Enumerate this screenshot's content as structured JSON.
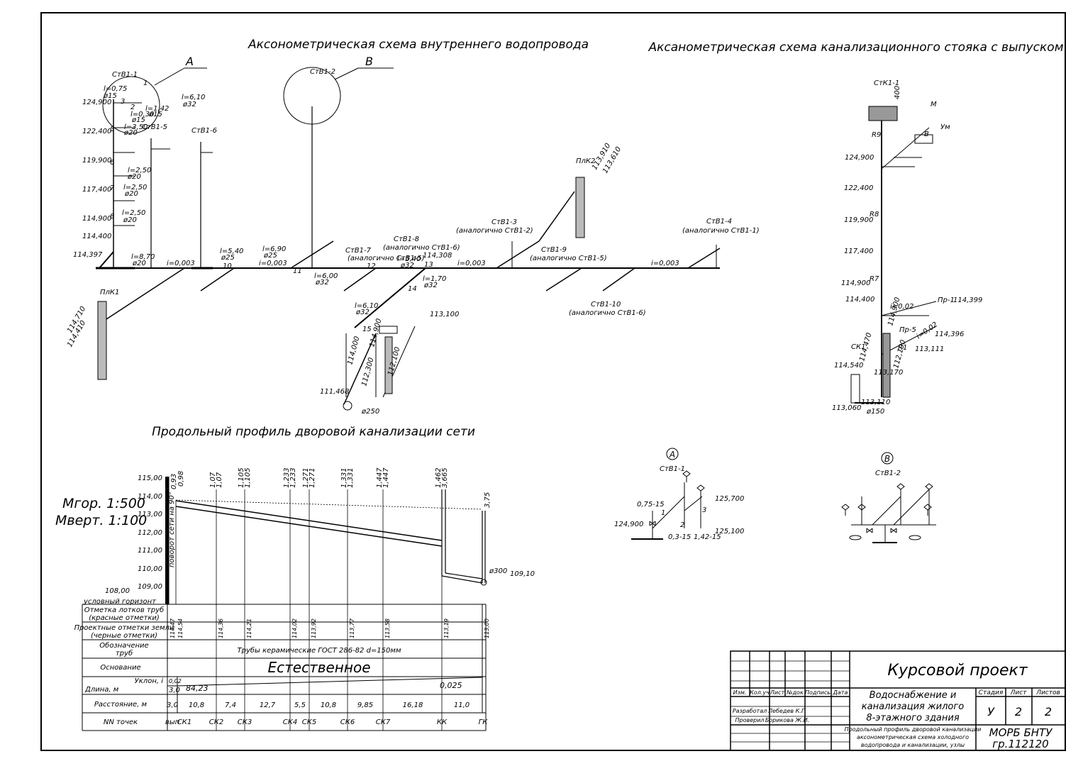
{
  "titles": {
    "water_axon": "Аксонометрическая схема внутреннего водопровода",
    "sewer_axon": "Аксанометрическая схема канализационного стояка с выпуском",
    "profile": "Продольный профиль дворовой канализации сети"
  },
  "water": {
    "nodes": {
      "A": "А",
      "B": "В"
    },
    "risers": [
      "СтВ1-1",
      "СтВ1-2",
      "СтВ1-5",
      "СтВ1-6",
      "СтВ1-7",
      "СтВ1-8",
      "СтВ1-3",
      "СтВ1-9",
      "СтВ1-4",
      "СтВ1-10"
    ],
    "riser_notes": {
      "stv1_7": "(аналогично СтВ1-5)",
      "stv1_8": "(аналогично СтВ1-6)",
      "stv1_3": "(аналогично СтВ1-2)",
      "stv1_9": "(аналогично СтВ1-5)",
      "stv1_4": "(аналогично СтВ1-1)",
      "stv1_10": "(аналогично СтВ1-6)"
    },
    "levels": [
      "124,900",
      "122,400",
      "119,900",
      "117,400",
      "114,900",
      "114,400",
      "114,397"
    ],
    "pipes": [
      {
        "l": "l=0,75",
        "d": "ø15"
      },
      {
        "l": "l=1,42",
        "d": "ø15"
      },
      {
        "l": "l=0,30",
        "d": "ø15"
      },
      {
        "l": "l=3,50",
        "d": "ø20"
      },
      {
        "l": "l=2,50",
        "d": "ø20"
      },
      {
        "l": "l=2,50",
        "d": "ø20"
      },
      {
        "l": "l=2,50",
        "d": "ø20"
      },
      {
        "l": "l=6,10",
        "d": "ø32"
      },
      {
        "l": "l=8,70",
        "d": "ø20"
      },
      {
        "l": "l=5,40",
        "d": "ø25"
      },
      {
        "l": "l=6,90",
        "d": "ø25"
      },
      {
        "l": "l=6,00",
        "d": "ø32"
      },
      {
        "l": "l=5,40",
        "d": "ø32"
      },
      {
        "l": "l=1,70",
        "d": "ø32"
      },
      {
        "l": "l=6,10",
        "d": "ø32"
      }
    ],
    "slope": "i=0,003",
    "ground": {
      "plk1": "ПлК1",
      "plk2": "ПлК2",
      "a": "114,710",
      "b": "114,410",
      "c": "113,910",
      "d": "113,610"
    },
    "inlet": {
      "l1": "114,308",
      "l2": "113,100",
      "l3": "114,000",
      "l4": "114,900",
      "l5": "112,300",
      "l6": "112,100",
      "l7": "111,468",
      "d": "ø250"
    },
    "node_nums": [
      "1",
      "2",
      "3",
      "4",
      "5",
      "6",
      "7",
      "8",
      "9",
      "10",
      "11",
      "12",
      "13",
      "14",
      "15"
    ]
  },
  "sewer": {
    "riser": "СтК1-1",
    "top": "400",
    "levels": [
      "124,900",
      "122,400",
      "119,900",
      "117,400",
      "114,900",
      "114,400"
    ],
    "revisions": [
      "R9",
      "R8",
      "R7",
      "R1"
    ],
    "fixtures": [
      "М",
      "В",
      "Ум"
    ],
    "slopes": [
      "i=0,02",
      "i=0,02"
    ],
    "marks": [
      "Пр-1",
      "114,399",
      "114,396",
      "113,111",
      "Пр-5",
      "114,900",
      "114,470",
      "113,170",
      "112,100",
      "СК1",
      "114,540",
      "113,110",
      "113,060",
      "ø150"
    ]
  },
  "details": {
    "a": {
      "label": "А",
      "riser": "СтВ1-1",
      "v": [
        "0,75-15",
        "125,700",
        "125,100",
        "124,900",
        "0,3-15",
        "1,42-15"
      ],
      "n": [
        "1",
        "2",
        "3"
      ]
    },
    "b": {
      "label": "В",
      "riser": "СтВ1-2"
    }
  },
  "profile": {
    "scale_h": "Мгор. 1:500",
    "scale_v": "Мверт. 1:100",
    "yticks": [
      "115,00",
      "114,00",
      "113,00",
      "112,00",
      "111,00",
      "110,00",
      "109,00"
    ],
    "horizon_value": "108,00",
    "horizon_label": "условный горизонт",
    "turn_note": "поворот сети на 90°",
    "depths": [
      "0,93",
      "0,98",
      "1,07",
      "1,07",
      "1,105",
      "1,105",
      "1,233",
      "1,233",
      "1,271",
      "1,271",
      "1,331",
      "1,331",
      "1,447",
      "1,447",
      "1,462",
      "3,665",
      "3,75"
    ],
    "manhole_d": "ø300",
    "manhole_level": "109,10",
    "rows": {
      "r1": [
        "Отметка лотков труб",
        "(красные отметки)"
      ],
      "r2": [
        "Проектные отметки земли",
        "(черные отметки)"
      ],
      "r3": [
        "Обозначение",
        "труб"
      ],
      "r4": "Основание",
      "r5a": "Уклон, i",
      "r5b": "Длина, м",
      "r6": "Расстояние, м",
      "r7": "NN точек"
    },
    "pipe_text": "Трубы керамические ГОСТ 286-82 d=150мм",
    "base_text": "Естественное",
    "slope": {
      "left_i": "0,02",
      "left_l": "3,0",
      "len": "84,23",
      "i": "0,025"
    },
    "distances": [
      "3,0",
      "10,8",
      "7,4",
      "12,7",
      "5,5",
      "10,8",
      "9,85",
      "16,18",
      "11,0"
    ],
    "points": [
      "вып",
      "СК1",
      "СК2",
      "СК3",
      "СК4",
      "СК5",
      "СК6",
      "СК7",
      "КК",
      "ГК"
    ],
    "ground_marks": [
      "114,47",
      "114,54",
      "114,36",
      "114,21",
      "114,02",
      "113,92",
      "113,77",
      "113,58",
      "113,19",
      "113,00"
    ]
  },
  "stamp": {
    "project": "Курсовой проект",
    "headers": [
      "Изм.",
      "Кол.уч",
      "Лист",
      "№док",
      "Подпись",
      "Дата"
    ],
    "roles": [
      {
        "role": "Разработал",
        "name": "Лебедев К.Г."
      },
      {
        "role": "Проверил",
        "name": "Борикова Ж.И."
      }
    ],
    "title_lines": [
      "Водоснабжение и",
      "канализация жилого",
      "8-этажного здания"
    ],
    "desc_lines": [
      "Продольный профиль дворовой канализации",
      "аксонометрическая схема холодного",
      "водопровода и канализации, узлы"
    ],
    "stage_h": "Стадия",
    "sheet_h": "Лист",
    "sheets_h": "Листов",
    "stage": "У",
    "sheet": "2",
    "sheets": "2",
    "org": "МОРБ БНТУ",
    "group": "гр.112120"
  }
}
